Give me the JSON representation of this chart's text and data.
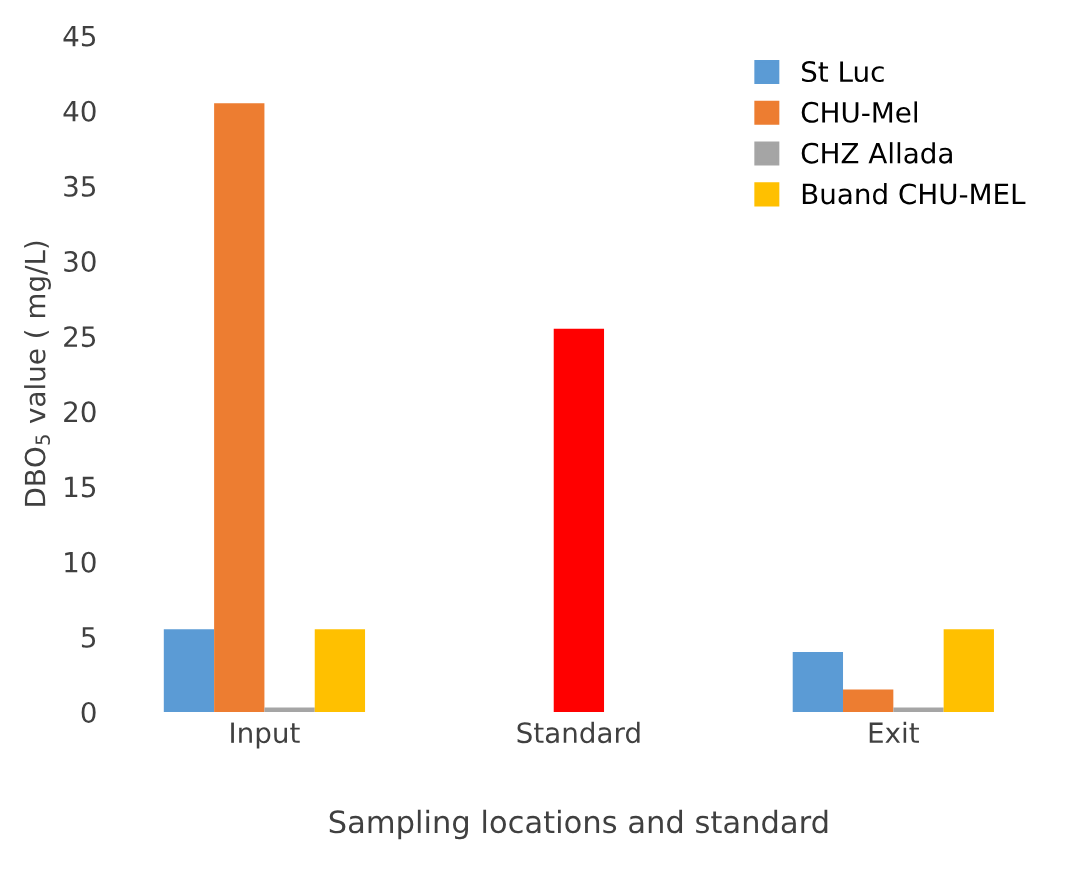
{
  "chart_data": {
    "type": "bar",
    "xlabel": "Sampling locations and standard",
    "ylabel": "DBO$_{5}$ value ( mg/L)",
    "categories": [
      "Input",
      "Standard",
      "Exit"
    ],
    "series": [
      {
        "name": "St Luc",
        "color": "#5b9bd5",
        "values": [
          5.5,
          null,
          4
        ]
      },
      {
        "name": "CHU-Mel",
        "color": "#ed7d31",
        "values": [
          40.5,
          null,
          1.5
        ]
      },
      {
        "name": "CHZ Allada",
        "color": "#a5a5a5",
        "values": [
          0.3,
          null,
          0.3
        ]
      },
      {
        "name": "Buand CHU-MEL",
        "color": "#ffc000",
        "values": [
          5.5,
          null,
          5.5
        ]
      },
      {
        "color": "#ff0000",
        "values": [
          null,
          25.5,
          null
        ]
      }
    ],
    "ylim": [
      0,
      45
    ],
    "yticks": [
      0,
      5,
      10,
      15,
      20,
      25,
      30,
      35,
      40,
      45
    ],
    "grid": false,
    "legend": "top right"
  }
}
